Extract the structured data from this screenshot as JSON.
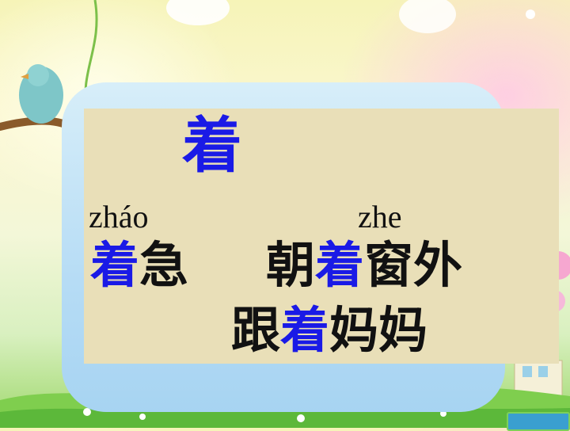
{
  "slide": {
    "character": "着",
    "readings": [
      {
        "pinyin": "zháo",
        "words": [
          {
            "parts": [
              {
                "text": "着",
                "highlight": true
              },
              {
                "text": "急",
                "highlight": false
              }
            ]
          }
        ]
      },
      {
        "pinyin": "zhe",
        "words": [
          {
            "parts": [
              {
                "text": "朝",
                "highlight": false
              },
              {
                "text": "着",
                "highlight": true
              },
              {
                "text": "窗外",
                "highlight": false
              }
            ]
          },
          {
            "parts": [
              {
                "text": "跟",
                "highlight": false
              },
              {
                "text": "着",
                "highlight": true
              },
              {
                "text": "妈妈",
                "highlight": false
              }
            ]
          }
        ]
      }
    ],
    "colors": {
      "highlight": "#1a1ae6",
      "text": "#111111",
      "panel": "#e9dfb8",
      "panel_back": "#b6dcf5"
    }
  }
}
